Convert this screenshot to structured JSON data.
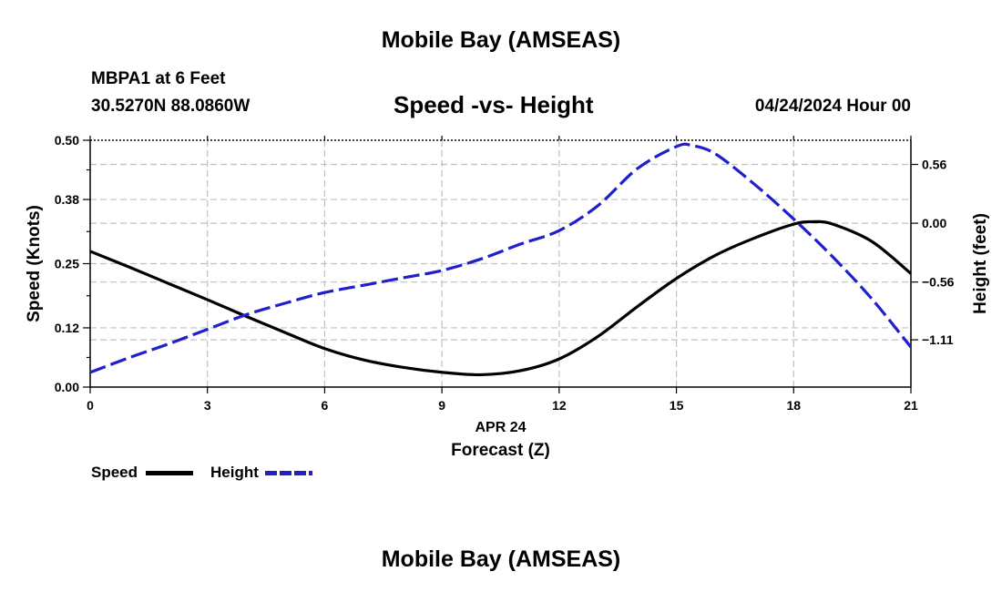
{
  "header": {
    "title": "Mobile Bay (AMSEAS)",
    "station": "MBPA1 at 6 Feet",
    "coords": "30.5270N  88.0860W",
    "chart_title": "Speed -vs- Height",
    "date_hour": "04/24/2024 Hour 00"
  },
  "footer": {
    "title": "Mobile Bay (AMSEAS)"
  },
  "legend": {
    "position": "bottom-left",
    "items": [
      {
        "label": "Speed",
        "color": "#000000",
        "style": "solid"
      },
      {
        "label": "Height",
        "color": "#1f1fcc",
        "style": "dashed"
      }
    ]
  },
  "chart_data": {
    "type": "line",
    "title": "Speed -vs- Height",
    "x_date_label": "APR 24",
    "xlabel": "Forecast (Z)",
    "ylabel_left": "Speed (Knots)",
    "ylabel_right": "Height (feet)",
    "xlim": [
      0,
      21
    ],
    "x_ticks": [
      "0",
      "3",
      "6",
      "9",
      "12",
      "15",
      "18",
      "21"
    ],
    "ylim_left": [
      0,
      0.5
    ],
    "y_ticks_left": [
      "0.00",
      "0.12",
      "0.25",
      "0.38",
      "0.50"
    ],
    "ylim_right": [
      -1.56,
      0.79
    ],
    "y_ticks_right": [
      "−1.11",
      "−0.56",
      "0.00",
      "0.56"
    ],
    "grid": true,
    "series": [
      {
        "name": "Speed",
        "axis": "left",
        "color": "#000000",
        "style": "solid",
        "x": [
          0,
          1,
          2,
          3,
          4,
          5,
          6,
          7,
          8,
          9,
          10,
          11,
          12,
          13,
          14,
          15,
          16,
          17,
          18,
          18.5,
          19,
          20,
          21
        ],
        "y": [
          0.275,
          0.243,
          0.21,
          0.177,
          0.143,
          0.11,
          0.078,
          0.055,
          0.04,
          0.03,
          0.025,
          0.033,
          0.057,
          0.103,
          0.163,
          0.22,
          0.267,
          0.302,
          0.33,
          0.335,
          0.33,
          0.295,
          0.23
        ]
      },
      {
        "name": "Height",
        "axis": "right",
        "color": "#1f1fcc",
        "style": "dashed",
        "x": [
          0,
          1,
          2,
          3,
          4,
          5,
          6,
          7,
          8,
          9,
          10,
          11,
          12,
          13,
          14,
          15,
          15.4,
          16,
          17,
          18,
          19,
          20,
          21
        ],
        "y": [
          -1.42,
          -1.28,
          -1.15,
          -1.01,
          -0.87,
          -0.76,
          -0.66,
          -0.59,
          -0.52,
          -0.45,
          -0.34,
          -0.2,
          -0.07,
          0.17,
          0.52,
          0.73,
          0.74,
          0.66,
          0.37,
          0.04,
          -0.32,
          -0.72,
          -1.18
        ]
      }
    ]
  }
}
